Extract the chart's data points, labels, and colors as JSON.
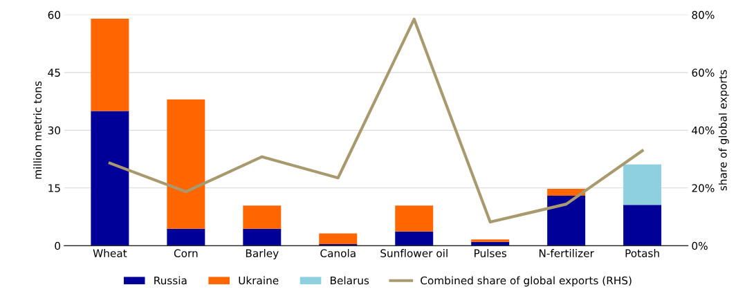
{
  "chart_data": {
    "type": "bar",
    "stacked": true,
    "categories": [
      "Wheat",
      "Corn",
      "Barley",
      "Canola",
      "Sunflower oil",
      "Pulses",
      "N-fertilizer",
      "Potash"
    ],
    "ylabel": "million metric tons",
    "y2label": "share of global exports",
    "ylim": [
      0,
      60
    ],
    "yticks": [
      0,
      15,
      30,
      45,
      60
    ],
    "y2lim": [
      0,
      80
    ],
    "y2ticks": [
      {
        "value": 0,
        "label": "0%"
      },
      {
        "value": 20,
        "label": "20%"
      },
      {
        "value": 40,
        "label": "40%"
      },
      {
        "value": 60,
        "label": "60%"
      },
      {
        "value": 80,
        "label": "80%"
      }
    ],
    "grid": "y",
    "legend": "bottom",
    "series": [
      {
        "name": "Russia",
        "color": "#000099",
        "values": [
          35,
          4.4,
          4.4,
          0.4,
          3.7,
          1.0,
          13.0,
          10.6
        ]
      },
      {
        "name": "Ukraine",
        "color": "#ff6600",
        "values": [
          24,
          33.6,
          6.0,
          2.8,
          6.7,
          0.6,
          1.8,
          null
        ]
      },
      {
        "name": "Belarus",
        "color": "#8fd0e0",
        "values": [
          null,
          null,
          null,
          null,
          null,
          null,
          null,
          10.5
        ]
      },
      {
        "name": "Combined share of global exports (RHS)",
        "type": "line",
        "axis": "y2",
        "color": "#a89a6e",
        "values": [
          28.6,
          18.7,
          30.8,
          23.5,
          78.5,
          8.2,
          14.4,
          32.9
        ]
      }
    ]
  }
}
